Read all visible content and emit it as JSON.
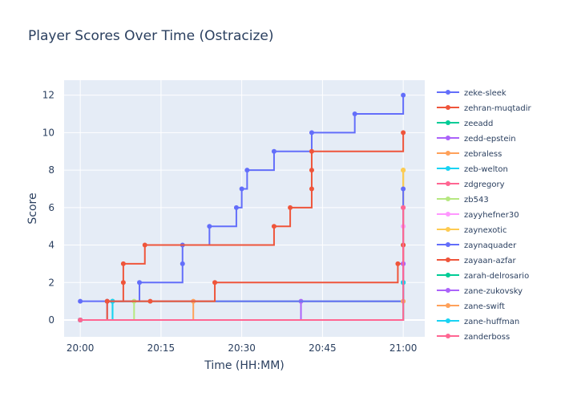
{
  "chart_data": {
    "type": "line",
    "title": "Player Scores Over Time (Ostracize)",
    "xlabel": "Time (HH:MM)",
    "ylabel": "Score",
    "xlim": [
      "19:57",
      "21:04"
    ],
    "ylim": [
      -0.9,
      12.8
    ],
    "x_ticks": [
      "20:00",
      "20:15",
      "20:30",
      "20:45",
      "21:00"
    ],
    "y_ticks": [
      0,
      2,
      4,
      6,
      8,
      10,
      12
    ],
    "grid": true,
    "legend_position": "right",
    "line_shape": "step",
    "plot_background": "#e5ecf6",
    "series": [
      {
        "name": "zeke-sleek",
        "color": "#636efa",
        "x": [
          "20:00",
          "20:11",
          "20:19",
          "20:19",
          "20:24",
          "20:29",
          "20:30",
          "20:31",
          "20:36",
          "20:43",
          "20:51",
          "21:00"
        ],
        "y": [
          1,
          2,
          3,
          4,
          5,
          6,
          7,
          8,
          9,
          10,
          11,
          12
        ]
      },
      {
        "name": "zehran-muqtadir",
        "color": "#ef553b",
        "x": [
          "20:05",
          "20:08",
          "20:08",
          "20:12",
          "20:36",
          "20:39",
          "20:43",
          "20:43",
          "20:43",
          "21:00"
        ],
        "y": [
          1,
          2,
          3,
          4,
          5,
          6,
          7,
          8,
          9,
          10
        ]
      },
      {
        "name": "zeeadd",
        "color": "#00cc96",
        "x": [
          "20:00",
          "20:06",
          "21:00"
        ],
        "y": [
          0,
          1,
          2
        ]
      },
      {
        "name": "zedd-epstein",
        "color": "#ab63fa",
        "x": [
          "20:00",
          "20:41",
          "21:00"
        ],
        "y": [
          0,
          1,
          3
        ]
      },
      {
        "name": "zebraless",
        "color": "#ffa15a",
        "x": [
          "20:00",
          "20:21",
          "21:00"
        ],
        "y": [
          0,
          1,
          8
        ]
      },
      {
        "name": "zeb-welton",
        "color": "#19d3f3",
        "x": [
          "20:00",
          "20:06",
          "21:00"
        ],
        "y": [
          0,
          1,
          4
        ]
      },
      {
        "name": "zdgregory",
        "color": "#ff6692",
        "x": [
          "20:00",
          "21:00"
        ],
        "y": [
          0,
          6
        ]
      },
      {
        "name": "zb543",
        "color": "#b6e880",
        "x": [
          "20:00",
          "20:10",
          "21:00"
        ],
        "y": [
          0,
          1,
          8
        ]
      },
      {
        "name": "zayyhefner30",
        "color": "#ff97ff",
        "x": [
          "20:00",
          "21:00"
        ],
        "y": [
          0,
          5
        ]
      },
      {
        "name": "zaynexotic",
        "color": "#fecb52",
        "x": [
          "20:00",
          "21:00"
        ],
        "y": [
          0,
          8
        ]
      },
      {
        "name": "zaynaquader",
        "color": "#636efa",
        "x": [
          "20:00",
          "20:05",
          "21:00"
        ],
        "y": [
          0,
          1,
          7
        ]
      },
      {
        "name": "zayaan-azfar",
        "color": "#ef553b",
        "x": [
          "20:00",
          "20:05",
          "20:13",
          "20:25",
          "20:59",
          "21:00"
        ],
        "y": [
          0,
          1,
          1,
          2,
          3,
          4
        ]
      },
      {
        "name": "zarah-delrosario",
        "color": "#00cc96",
        "x": [
          "20:00",
          "21:00"
        ],
        "y": [
          0,
          2
        ]
      },
      {
        "name": "zane-zukovsky",
        "color": "#ab63fa",
        "x": [
          "20:00",
          "21:00"
        ],
        "y": [
          0,
          3
        ]
      },
      {
        "name": "zane-swift",
        "color": "#ffa15a",
        "x": [
          "20:00",
          "21:00"
        ],
        "y": [
          0,
          1
        ]
      },
      {
        "name": "zane-huffman",
        "color": "#19d3f3",
        "x": [
          "20:00",
          "21:00"
        ],
        "y": [
          0,
          2
        ]
      },
      {
        "name": "zanderboss",
        "color": "#ff6692",
        "x": [
          "20:00",
          "21:00"
        ],
        "y": [
          0,
          6
        ]
      }
    ]
  }
}
